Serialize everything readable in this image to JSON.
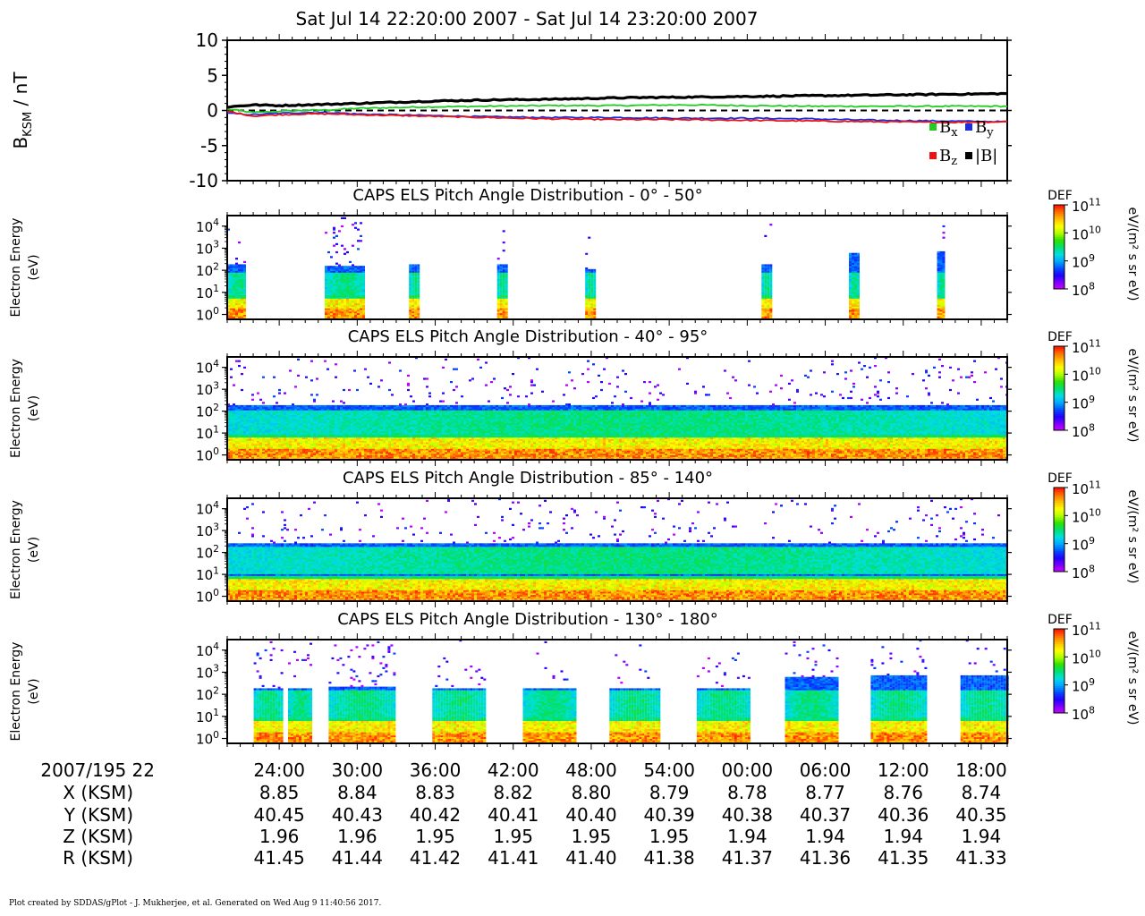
{
  "title": "Sat Jul 14 22:20:00 2007 - Sat Jul 14 23:20:00 2007",
  "footer": "Plot created by SDDAS/gPlot - J. Mukherjee, et al.  Generated on Wed Aug 9 11:40:56 2017.",
  "colors": {
    "bx": "#22cc22",
    "by": "#1a2ee0",
    "bz": "#ee1111",
    "btot": "#000000",
    "colormap": [
      "#d000ff",
      "#7a00ff",
      "#2000ff",
      "#0050ff",
      "#00a8ff",
      "#00e0e0",
      "#00e070",
      "#30e000",
      "#b0ff00",
      "#ffff00",
      "#ffc000",
      "#ff7000",
      "#ff1000"
    ]
  },
  "chart_data": [
    {
      "type": "line",
      "panel": "magnetometer",
      "ylabel_main": "B",
      "ylabel_sub": "KSM",
      "ylabel_unit": " / nT",
      "ylim": [
        -10,
        10
      ],
      "yticks": [
        "10",
        "5",
        "0",
        "-5",
        "-10"
      ],
      "zero_line": "dashed",
      "legend": [
        {
          "color": "#22cc22",
          "label": "B",
          "sub": "x"
        },
        {
          "color": "#1a2ee0",
          "label": "B",
          "sub": "y"
        },
        {
          "color": "#ee1111",
          "label": "B",
          "sub": "z"
        },
        {
          "color": "#000000",
          "label": "|B|",
          "sub": ""
        }
      ],
      "x_minutes": [
        0,
        2,
        4,
        6,
        8,
        10,
        15,
        20,
        25,
        30,
        35,
        40,
        45,
        50,
        55,
        60
      ],
      "series": [
        {
          "name": "Bx",
          "color": "#22cc22",
          "values": [
            0.2,
            -0.3,
            -0.1,
            0.0,
            0.1,
            0.3,
            0.5,
            0.6,
            0.7,
            0.7,
            0.8,
            0.7,
            0.6,
            0.6,
            0.6,
            0.6
          ]
        },
        {
          "name": "By",
          "color": "#1a2ee0",
          "values": [
            -0.4,
            -0.6,
            -0.4,
            -0.3,
            -0.3,
            -0.5,
            -0.7,
            -0.9,
            -1.0,
            -1.0,
            -1.1,
            -1.1,
            -1.2,
            -1.4,
            -1.5,
            -1.6
          ]
        },
        {
          "name": "Bz",
          "color": "#ee1111",
          "values": [
            -0.1,
            -0.8,
            -0.6,
            -0.5,
            -0.5,
            -0.6,
            -0.8,
            -1.0,
            -1.2,
            -1.3,
            -1.3,
            -1.4,
            -1.5,
            -1.6,
            -1.7,
            -1.6
          ]
        },
        {
          "name": "|B|",
          "color": "#000000",
          "values": [
            0.5,
            0.8,
            0.7,
            0.8,
            0.9,
            1.0,
            1.3,
            1.5,
            1.6,
            1.8,
            1.9,
            2.0,
            2.1,
            2.2,
            2.3,
            2.4
          ]
        }
      ]
    },
    {
      "type": "heatmap",
      "title": "CAPS ELS Pitch Angle Distribution - 0° - 50°",
      "ylabel": [
        "Electron Energy",
        "(eV)"
      ],
      "yscale": "log",
      "ylim": [
        0.6,
        30000
      ],
      "yticks": [
        {
          "b": "10",
          "e": "4"
        },
        {
          "b": "10",
          "e": "3"
        },
        {
          "b": "10",
          "e": "2"
        },
        {
          "b": "10",
          "e": "1"
        },
        {
          "b": "10",
          "e": "0"
        }
      ],
      "colorbar": {
        "label": "DEF",
        "unit": "eV/(m² s sr eV)",
        "ticks": [
          {
            "b": "10",
            "e": "11"
          },
          {
            "b": "10",
            "e": "10"
          },
          {
            "b": "10",
            "e": "9"
          },
          {
            "b": "10",
            "e": "8"
          }
        ],
        "range_log10": [
          8,
          11
        ]
      },
      "segments": [
        {
          "t0": 0.0,
          "t1": 2.4,
          "top": 200,
          "spray": 0.3
        },
        {
          "t0": 12.5,
          "t1": 17.4,
          "top": 150,
          "spray": 1.0
        },
        {
          "t0": 23.3,
          "t1": 24.6,
          "top": 200,
          "spray": 0.2
        },
        {
          "t0": 34.6,
          "t1": 35.8,
          "top": 180,
          "spray": 0.3
        },
        {
          "t0": 45.9,
          "t1": 47.0,
          "top": 120,
          "spray": 0.3
        },
        {
          "t0": 68.5,
          "t1": 69.6,
          "top": 200,
          "spray": 0.2
        },
        {
          "t0": 79.7,
          "t1": 80.8,
          "top": 600,
          "spray": 0.2
        },
        {
          "t0": 91.0,
          "t1": 92.0,
          "top": 700,
          "spray": 0.2
        }
      ],
      "low_band_top": 5,
      "core_range": [
        6,
        80
      ]
    },
    {
      "type": "heatmap",
      "title": "CAPS ELS Pitch Angle Distribution - 40° - 95°",
      "ylabel": [
        "Electron Energy",
        "(eV)"
      ],
      "yscale": "log",
      "ylim": [
        0.6,
        30000
      ],
      "yticks": [
        {
          "b": "10",
          "e": "4"
        },
        {
          "b": "10",
          "e": "3"
        },
        {
          "b": "10",
          "e": "2"
        },
        {
          "b": "10",
          "e": "1"
        },
        {
          "b": "10",
          "e": "0"
        }
      ],
      "colorbar": {
        "label": "DEF",
        "unit": "eV/(m² s sr eV)",
        "ticks": [
          {
            "b": "10",
            "e": "11"
          },
          {
            "b": "10",
            "e": "10"
          },
          {
            "b": "10",
            "e": "9"
          },
          {
            "b": "10",
            "e": "8"
          }
        ],
        "range_log10": [
          8,
          11
        ]
      },
      "segments": [
        {
          "t0": 0.0,
          "t1": 100.0,
          "top": 200,
          "spray": 0.5
        }
      ],
      "low_band_top": 6,
      "core_range": [
        8,
        120
      ]
    },
    {
      "type": "heatmap",
      "title": "CAPS ELS Pitch Angle Distribution - 85° - 140°",
      "ylabel": [
        "Electron Energy",
        "(eV)"
      ],
      "yscale": "log",
      "ylim": [
        0.6,
        30000
      ],
      "yticks": [
        {
          "b": "10",
          "e": "4"
        },
        {
          "b": "10",
          "e": "3"
        },
        {
          "b": "10",
          "e": "2"
        },
        {
          "b": "10",
          "e": "1"
        },
        {
          "b": "10",
          "e": "0"
        }
      ],
      "colorbar": {
        "label": "DEF",
        "unit": "eV/(m² s sr eV)",
        "ticks": [
          {
            "b": "10",
            "e": "11"
          },
          {
            "b": "10",
            "e": "10"
          },
          {
            "b": "10",
            "e": "9"
          },
          {
            "b": "10",
            "e": "8"
          }
        ],
        "range_log10": [
          8,
          11
        ]
      },
      "segments": [
        {
          "t0": 0.0,
          "t1": 100.0,
          "top": 250,
          "spray": 0.5
        }
      ],
      "low_band_top": 6,
      "core_range": [
        10,
        200
      ]
    },
    {
      "type": "heatmap",
      "title": "CAPS ELS Pitch Angle Distribution - 130° - 180°",
      "ylabel": [
        "Electron Energy",
        "(eV)"
      ],
      "yscale": "log",
      "ylim": [
        0.6,
        30000
      ],
      "yticks": [
        {
          "b": "10",
          "e": "4"
        },
        {
          "b": "10",
          "e": "3"
        },
        {
          "b": "10",
          "e": "2"
        },
        {
          "b": "10",
          "e": "1"
        },
        {
          "b": "10",
          "e": "0"
        }
      ],
      "colorbar": {
        "label": "DEF",
        "unit": "eV/(m² s sr eV)",
        "ticks": [
          {
            "b": "10",
            "e": "11"
          },
          {
            "b": "10",
            "e": "10"
          },
          {
            "b": "10",
            "e": "9"
          },
          {
            "b": "10",
            "e": "8"
          }
        ],
        "range_log10": [
          8,
          11
        ]
      },
      "segments": [
        {
          "t0": 3.4,
          "t1": 7.0,
          "top": 200,
          "spray": 0.5
        },
        {
          "t0": 7.8,
          "t1": 10.7,
          "top": 200,
          "spray": 0.5
        },
        {
          "t0": 13.0,
          "t1": 21.4,
          "top": 220,
          "spray": 0.9
        },
        {
          "t0": 26.3,
          "t1": 32.9,
          "top": 200,
          "spray": 0.5
        },
        {
          "t0": 37.9,
          "t1": 44.5,
          "top": 200,
          "spray": 0.5
        },
        {
          "t0": 49.0,
          "t1": 55.5,
          "top": 200,
          "spray": 0.5
        },
        {
          "t0": 60.2,
          "t1": 66.8,
          "top": 200,
          "spray": 0.5
        },
        {
          "t0": 71.5,
          "t1": 78.2,
          "top": 600,
          "spray": 0.5
        },
        {
          "t0": 82.5,
          "t1": 89.4,
          "top": 700,
          "spray": 0.5
        },
        {
          "t0": 94.0,
          "t1": 100.0,
          "top": 700,
          "spray": 0.5
        }
      ],
      "low_band_top": 6,
      "core_range": [
        8,
        150
      ]
    }
  ],
  "x_axis": {
    "start_label": "2007/195 22",
    "tick_labels": [
      "24:00",
      "30:00",
      "36:00",
      "42:00",
      "48:00",
      "54:00",
      "00:00",
      "06:00",
      "12:00",
      "18:00"
    ],
    "tick_minutes": [
      4,
      10,
      16,
      22,
      28,
      34,
      40,
      46,
      52,
      58
    ],
    "rows": [
      {
        "label": "X (KSM)",
        "values": [
          "8.85",
          "8.84",
          "8.83",
          "8.82",
          "8.80",
          "8.79",
          "8.78",
          "8.77",
          "8.76",
          "8.74"
        ]
      },
      {
        "label": "Y (KSM)",
        "values": [
          "40.45",
          "40.43",
          "40.42",
          "40.41",
          "40.40",
          "40.39",
          "40.38",
          "40.37",
          "40.36",
          "40.35"
        ]
      },
      {
        "label": "Z (KSM)",
        "values": [
          "1.96",
          "1.96",
          "1.95",
          "1.95",
          "1.95",
          "1.95",
          "1.94",
          "1.94",
          "1.94",
          "1.94"
        ]
      },
      {
        "label": "R (KSM)",
        "values": [
          "41.45",
          "41.44",
          "41.42",
          "41.41",
          "41.40",
          "41.38",
          "41.37",
          "41.36",
          "41.35",
          "41.33"
        ]
      }
    ]
  }
}
